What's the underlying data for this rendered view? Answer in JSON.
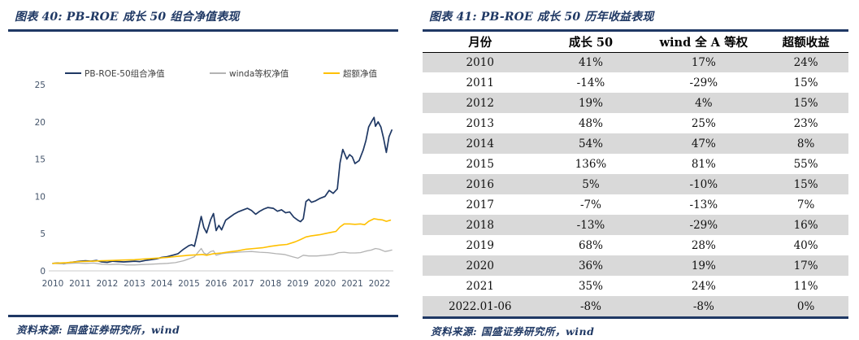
{
  "colors": {
    "accent_navy": "#1f3864",
    "zebra_gray": "#d9d9d9",
    "axis_label": "#44546a",
    "axis_line": "#cccccc",
    "series_portfolio": "#1f3864",
    "series_benchmark": "#b3b3b3",
    "series_excess": "#ffc000"
  },
  "left_panel": {
    "title": "图表 40: PB-ROE 成长 50 组合净值表现",
    "source": "资料来源: 国盛证券研究所，wind",
    "chart_data": {
      "type": "line",
      "title": "PB-ROE 成长 50 组合净值表现",
      "xlabel": "",
      "ylabel": "",
      "xlim": [
        2010,
        2022.6
      ],
      "ylim": [
        0,
        25
      ],
      "x_ticks": [
        2010,
        2011,
        2012,
        2013,
        2014,
        2015,
        2016,
        2017,
        2018,
        2019,
        2020,
        2021,
        2022
      ],
      "y_ticks": [
        0,
        5,
        10,
        15,
        20,
        25
      ],
      "grid": "off",
      "legend_position": "top",
      "series": [
        {
          "name": "PB-ROE-50组合净值",
          "color": "#1f3864",
          "width": 1.7,
          "points": [
            [
              2010.0,
              1.0
            ],
            [
              2010.2,
              1.05
            ],
            [
              2010.4,
              0.95
            ],
            [
              2010.6,
              1.1
            ],
            [
              2010.8,
              1.2
            ],
            [
              2011.0,
              1.3
            ],
            [
              2011.2,
              1.35
            ],
            [
              2011.4,
              1.3
            ],
            [
              2011.6,
              1.4
            ],
            [
              2011.8,
              1.2
            ],
            [
              2012.0,
              1.15
            ],
            [
              2012.2,
              1.3
            ],
            [
              2012.4,
              1.25
            ],
            [
              2012.6,
              1.2
            ],
            [
              2012.8,
              1.25
            ],
            [
              2013.0,
              1.3
            ],
            [
              2013.2,
              1.25
            ],
            [
              2013.4,
              1.4
            ],
            [
              2013.6,
              1.5
            ],
            [
              2013.8,
              1.6
            ],
            [
              2014.0,
              1.8
            ],
            [
              2014.2,
              1.9
            ],
            [
              2014.4,
              2.1
            ],
            [
              2014.6,
              2.3
            ],
            [
              2014.8,
              2.9
            ],
            [
              2015.0,
              3.4
            ],
            [
              2015.1,
              3.5
            ],
            [
              2015.2,
              3.3
            ],
            [
              2015.3,
              4.8
            ],
            [
              2015.45,
              7.3
            ],
            [
              2015.55,
              5.8
            ],
            [
              2015.65,
              5.1
            ],
            [
              2015.8,
              6.9
            ],
            [
              2015.9,
              7.7
            ],
            [
              2016.0,
              5.4
            ],
            [
              2016.1,
              6.1
            ],
            [
              2016.2,
              5.5
            ],
            [
              2016.35,
              6.8
            ],
            [
              2016.5,
              7.2
            ],
            [
              2016.65,
              7.6
            ],
            [
              2016.8,
              7.9
            ],
            [
              2017.0,
              8.2
            ],
            [
              2017.15,
              8.4
            ],
            [
              2017.3,
              8.1
            ],
            [
              2017.45,
              7.6
            ],
            [
              2017.6,
              8.0
            ],
            [
              2017.75,
              8.3
            ],
            [
              2017.9,
              8.5
            ],
            [
              2018.1,
              8.4
            ],
            [
              2018.25,
              8.0
            ],
            [
              2018.4,
              8.2
            ],
            [
              2018.55,
              7.8
            ],
            [
              2018.7,
              7.9
            ],
            [
              2018.85,
              7.2
            ],
            [
              2019.0,
              6.8
            ],
            [
              2019.1,
              6.6
            ],
            [
              2019.2,
              7.0
            ],
            [
              2019.3,
              9.3
            ],
            [
              2019.4,
              9.6
            ],
            [
              2019.5,
              9.2
            ],
            [
              2019.65,
              9.4
            ],
            [
              2019.8,
              9.7
            ],
            [
              2020.0,
              10.0
            ],
            [
              2020.15,
              10.8
            ],
            [
              2020.3,
              10.4
            ],
            [
              2020.45,
              11.0
            ],
            [
              2020.55,
              14.5
            ],
            [
              2020.65,
              16.3
            ],
            [
              2020.8,
              15.0
            ],
            [
              2020.9,
              15.6
            ],
            [
              2021.0,
              15.3
            ],
            [
              2021.1,
              14.4
            ],
            [
              2021.25,
              14.8
            ],
            [
              2021.4,
              16.2
            ],
            [
              2021.5,
              17.5
            ],
            [
              2021.6,
              19.3
            ],
            [
              2021.7,
              20.0
            ],
            [
              2021.8,
              20.6
            ],
            [
              2021.85,
              19.4
            ],
            [
              2021.95,
              20.0
            ],
            [
              2022.05,
              19.3
            ],
            [
              2022.15,
              17.8
            ],
            [
              2022.25,
              15.9
            ],
            [
              2022.35,
              18.0
            ],
            [
              2022.45,
              18.9
            ]
          ]
        },
        {
          "name": "winda等权净值",
          "color": "#b3b3b3",
          "width": 1.3,
          "points": [
            [
              2010.0,
              1.0
            ],
            [
              2010.3,
              0.95
            ],
            [
              2010.6,
              1.0
            ],
            [
              2010.9,
              1.05
            ],
            [
              2011.2,
              1.0
            ],
            [
              2011.5,
              1.05
            ],
            [
              2011.8,
              0.9
            ],
            [
              2012.1,
              0.85
            ],
            [
              2012.4,
              0.9
            ],
            [
              2012.7,
              0.8
            ],
            [
              2013.0,
              0.8
            ],
            [
              2013.3,
              0.85
            ],
            [
              2013.6,
              0.9
            ],
            [
              2013.9,
              0.95
            ],
            [
              2014.2,
              1.0
            ],
            [
              2014.5,
              1.1
            ],
            [
              2014.8,
              1.35
            ],
            [
              2015.0,
              1.6
            ],
            [
              2015.2,
              1.9
            ],
            [
              2015.45,
              3.0
            ],
            [
              2015.55,
              2.4
            ],
            [
              2015.65,
              2.2
            ],
            [
              2015.8,
              2.6
            ],
            [
              2015.9,
              2.7
            ],
            [
              2016.0,
              2.1
            ],
            [
              2016.2,
              2.3
            ],
            [
              2016.4,
              2.4
            ],
            [
              2016.6,
              2.45
            ],
            [
              2016.8,
              2.5
            ],
            [
              2017.0,
              2.55
            ],
            [
              2017.3,
              2.6
            ],
            [
              2017.6,
              2.5
            ],
            [
              2017.9,
              2.45
            ],
            [
              2018.2,
              2.3
            ],
            [
              2018.5,
              2.2
            ],
            [
              2018.8,
              1.9
            ],
            [
              2019.0,
              1.7
            ],
            [
              2019.2,
              2.1
            ],
            [
              2019.4,
              2.0
            ],
            [
              2019.7,
              2.0
            ],
            [
              2020.0,
              2.1
            ],
            [
              2020.3,
              2.2
            ],
            [
              2020.5,
              2.45
            ],
            [
              2020.7,
              2.5
            ],
            [
              2020.9,
              2.4
            ],
            [
              2021.1,
              2.4
            ],
            [
              2021.3,
              2.45
            ],
            [
              2021.5,
              2.65
            ],
            [
              2021.7,
              2.8
            ],
            [
              2021.85,
              3.0
            ],
            [
              2022.0,
              2.9
            ],
            [
              2022.2,
              2.6
            ],
            [
              2022.35,
              2.7
            ],
            [
              2022.45,
              2.8
            ]
          ]
        },
        {
          "name": "超额净值",
          "color": "#ffc000",
          "width": 1.6,
          "points": [
            [
              2010.0,
              1.0
            ],
            [
              2010.5,
              1.1
            ],
            [
              2011.0,
              1.25
            ],
            [
              2011.5,
              1.3
            ],
            [
              2011.8,
              1.35
            ],
            [
              2012.2,
              1.4
            ],
            [
              2012.6,
              1.45
            ],
            [
              2013.0,
              1.5
            ],
            [
              2013.4,
              1.6
            ],
            [
              2013.8,
              1.7
            ],
            [
              2014.2,
              1.8
            ],
            [
              2014.6,
              1.95
            ],
            [
              2015.0,
              2.1
            ],
            [
              2015.3,
              2.15
            ],
            [
              2015.5,
              2.2
            ],
            [
              2015.65,
              2.1
            ],
            [
              2015.9,
              2.3
            ],
            [
              2016.2,
              2.4
            ],
            [
              2016.5,
              2.55
            ],
            [
              2016.8,
              2.7
            ],
            [
              2017.1,
              2.9
            ],
            [
              2017.4,
              3.0
            ],
            [
              2017.7,
              3.1
            ],
            [
              2018.0,
              3.3
            ],
            [
              2018.3,
              3.45
            ],
            [
              2018.6,
              3.55
            ],
            [
              2018.9,
              3.9
            ],
            [
              2019.1,
              4.2
            ],
            [
              2019.3,
              4.55
            ],
            [
              2019.5,
              4.7
            ],
            [
              2019.8,
              4.85
            ],
            [
              2020.0,
              5.0
            ],
            [
              2020.2,
              5.15
            ],
            [
              2020.4,
              5.3
            ],
            [
              2020.55,
              5.9
            ],
            [
              2020.7,
              6.3
            ],
            [
              2020.9,
              6.3
            ],
            [
              2021.1,
              6.25
            ],
            [
              2021.3,
              6.3
            ],
            [
              2021.45,
              6.2
            ],
            [
              2021.6,
              6.65
            ],
            [
              2021.8,
              7.0
            ],
            [
              2021.95,
              6.9
            ],
            [
              2022.1,
              6.85
            ],
            [
              2022.25,
              6.65
            ],
            [
              2022.4,
              6.8
            ]
          ]
        }
      ]
    }
  },
  "right_panel": {
    "title": "图表 41: PB-ROE 成长 50 历年收益表现",
    "source": "资料来源: 国盛证券研究所，wind",
    "table": {
      "headers": [
        "月份",
        "成长 50",
        "wind 全 A 等权",
        "超额收益"
      ],
      "rows": [
        [
          "2010",
          "41%",
          "17%",
          "24%"
        ],
        [
          "2011",
          "-14%",
          "-29%",
          "15%"
        ],
        [
          "2012",
          "19%",
          "4%",
          "15%"
        ],
        [
          "2013",
          "48%",
          "25%",
          "23%"
        ],
        [
          "2014",
          "54%",
          "47%",
          "8%"
        ],
        [
          "2015",
          "136%",
          "81%",
          "55%"
        ],
        [
          "2016",
          "5%",
          "-10%",
          "15%"
        ],
        [
          "2017",
          "-7%",
          "-13%",
          "7%"
        ],
        [
          "2018",
          "-13%",
          "-29%",
          "16%"
        ],
        [
          "2019",
          "68%",
          "28%",
          "40%"
        ],
        [
          "2020",
          "36%",
          "19%",
          "17%"
        ],
        [
          "2021",
          "35%",
          "24%",
          "11%"
        ],
        [
          "2022.01-06",
          "-8%",
          "-8%",
          "0%"
        ]
      ]
    }
  }
}
